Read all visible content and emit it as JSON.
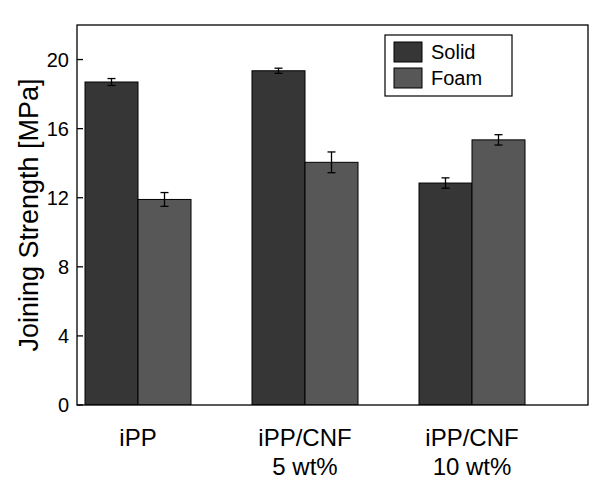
{
  "chart_data": {
    "type": "bar",
    "y_label": "Joining Strength [MPa]",
    "categories": [
      "iPP",
      "iPP/CNF\n5 wt%",
      "iPP/CNF\n10 wt%"
    ],
    "series": [
      {
        "name": "Solid",
        "color": "#363636",
        "values": [
          18.7,
          19.35,
          12.85
        ],
        "errors": [
          0.2,
          0.15,
          0.3
        ]
      },
      {
        "name": "Foam",
        "color": "#575757",
        "values": [
          11.9,
          14.05,
          15.35
        ],
        "errors": [
          0.4,
          0.6,
          0.3
        ]
      }
    ],
    "ylim": [
      0,
      22
    ],
    "yticks": [
      0,
      4,
      8,
      12,
      16,
      20
    ],
    "grid": false,
    "legend": "upper right"
  }
}
